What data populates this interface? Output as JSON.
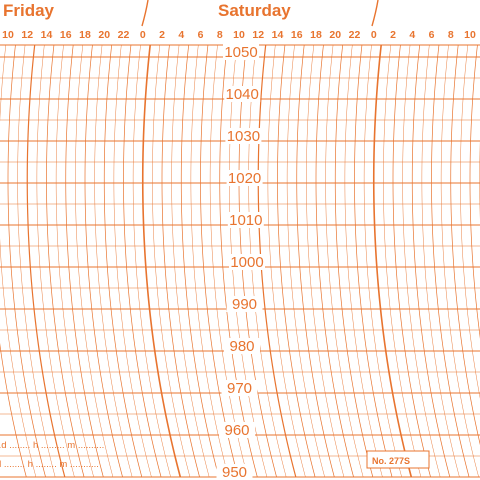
{
  "colors": {
    "ink": "#e8742f",
    "paper": "#ffffff"
  },
  "days": [
    {
      "name": "Friday"
    },
    {
      "name": "Saturday"
    }
  ],
  "pressure_scale": {
    "labels": [
      "1050",
      "1040",
      "1030",
      "1020",
      "1010",
      "1000",
      "990",
      "980",
      "970",
      "960",
      "950"
    ]
  },
  "hour_ticks": [
    "10",
    "12",
    "14",
    "16",
    "18",
    "20",
    "22",
    "0",
    "2",
    "4",
    "6",
    "8",
    "10",
    "12",
    "14",
    "16",
    "18",
    "20",
    "22",
    "0",
    "2",
    "4",
    "6",
    "8",
    "10"
  ],
  "bold_hours": [
    "12",
    "0"
  ],
  "record_fields": {
    "line1": "..d  ........ h ......... m ..........",
    "line2": "d ........ h ........ m ..........."
  },
  "catalog_number": "No. 277S"
}
